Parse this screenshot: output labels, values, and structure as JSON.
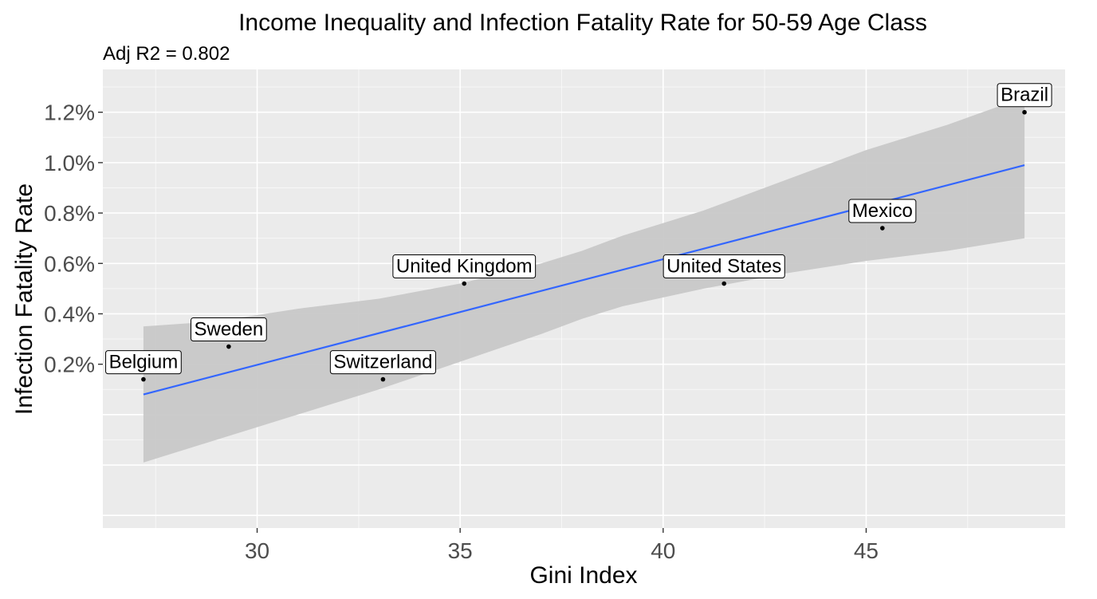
{
  "chart_data": {
    "type": "scatter",
    "title": "Income Inequality and Infection Fatality Rate for 50-59 Age Class",
    "subtitle": "Adj R2 =  0.802",
    "xlabel": "Gini Index",
    "ylabel": "Infection Fatality Rate",
    "xlim": [
      26.2,
      49.9
    ],
    "ylim": [
      -0.45,
      1.37
    ],
    "x_ticks": [
      30,
      35,
      40,
      45
    ],
    "x_tick_labels": [
      "30",
      "35",
      "40",
      "45"
    ],
    "y_ticks": [
      0.2,
      0.4,
      0.6,
      0.8,
      1.0,
      1.2
    ],
    "y_tick_labels": [
      "0.2%",
      "0.4%",
      "0.6%",
      "0.8%",
      "1.0%",
      "1.2%"
    ],
    "grid": true,
    "points": [
      {
        "label": "Belgium",
        "x": 27.2,
        "y": 0.14
      },
      {
        "label": "Sweden",
        "x": 29.3,
        "y": 0.27
      },
      {
        "label": "Switzerland",
        "x": 33.1,
        "y": 0.14
      },
      {
        "label": "United Kingdom",
        "x": 35.1,
        "y": 0.52
      },
      {
        "label": "United States",
        "x": 41.5,
        "y": 0.52
      },
      {
        "label": "Mexico",
        "x": 45.4,
        "y": 0.74
      },
      {
        "label": "Brazil",
        "x": 48.9,
        "y": 1.2
      }
    ],
    "fit_line": {
      "x": [
        27.2,
        48.9
      ],
      "y": [
        0.08,
        0.99
      ]
    },
    "confidence_band": {
      "x": [
        27.2,
        29.0,
        31.0,
        33.0,
        35.0,
        37.0,
        38.0,
        39.0,
        41.0,
        43.0,
        45.0,
        47.0,
        48.9
      ],
      "lower": [
        -0.19,
        -0.1,
        0.0,
        0.1,
        0.21,
        0.32,
        0.38,
        0.43,
        0.5,
        0.56,
        0.61,
        0.65,
        0.7
      ],
      "upper": [
        0.35,
        0.37,
        0.42,
        0.46,
        0.52,
        0.6,
        0.65,
        0.71,
        0.81,
        0.93,
        1.05,
        1.15,
        1.26
      ]
    },
    "colors": {
      "panel_background": "#ebebeb",
      "grid_major": "#ffffff",
      "confidence_band": "#c8c8c8",
      "fit_line": "#3366ff",
      "points": "#000000"
    }
  }
}
